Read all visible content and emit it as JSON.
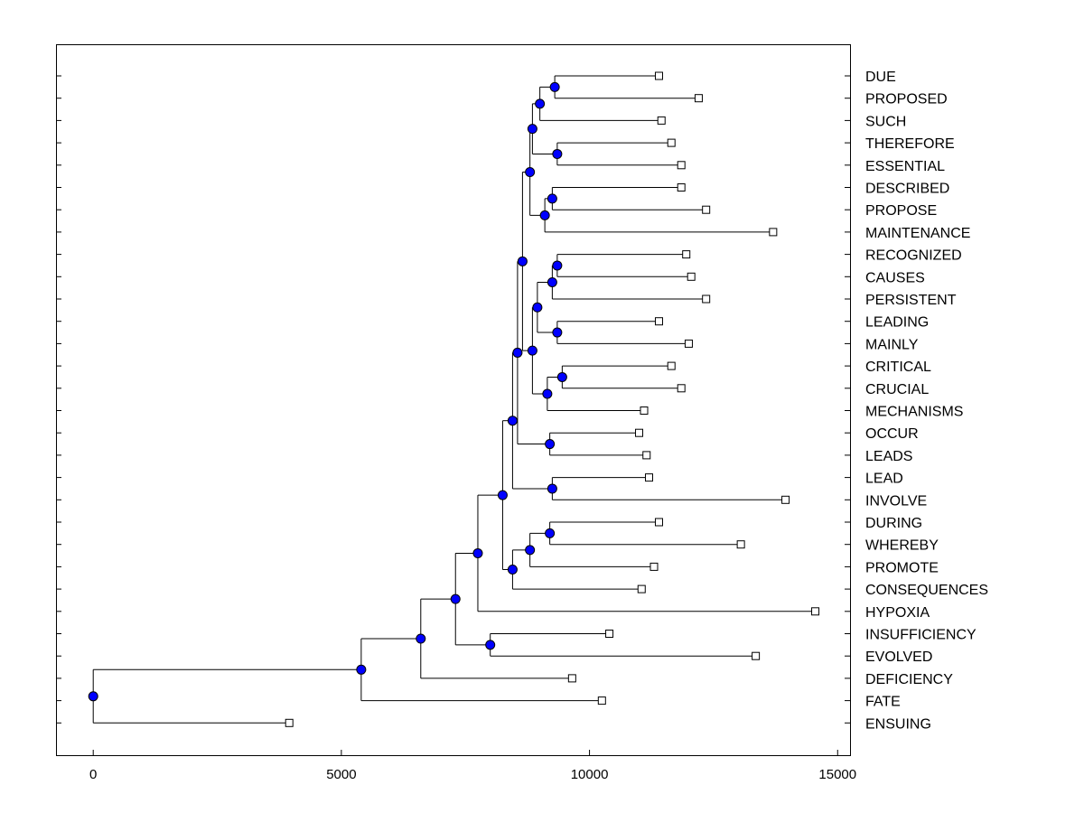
{
  "chart_data": {
    "type": "dendrogram",
    "title": "",
    "xlabel": "",
    "ylabel": "",
    "xlim": [
      -750,
      15250
    ],
    "x_ticks": [
      0,
      5000,
      10000,
      15000
    ],
    "x_tick_labels": [
      "0",
      "5000",
      "10000",
      "15000"
    ],
    "grid": false,
    "legend": "none",
    "colors": {
      "internal_node": "#0000ff",
      "internal_node_edge": "#000000",
      "leaf_marker": "#ffffff",
      "lines": "#000000"
    },
    "leaves": [
      {
        "id": "L0",
        "label": "DUE",
        "x": 11400
      },
      {
        "id": "L1",
        "label": "PROPOSED",
        "x": 12200
      },
      {
        "id": "L2",
        "label": "SUCH",
        "x": 11450
      },
      {
        "id": "L3",
        "label": "THEREFORE",
        "x": 11650
      },
      {
        "id": "L4",
        "label": "ESSENTIAL",
        "x": 11850
      },
      {
        "id": "L5",
        "label": "DESCRIBED",
        "x": 11850
      },
      {
        "id": "L6",
        "label": "PROPOSE",
        "x": 12350
      },
      {
        "id": "L7",
        "label": "MAINTENANCE",
        "x": 13700
      },
      {
        "id": "L8",
        "label": "RECOGNIZED",
        "x": 11950
      },
      {
        "id": "L9",
        "label": "CAUSES",
        "x": 12050
      },
      {
        "id": "L10",
        "label": "PERSISTENT",
        "x": 12350
      },
      {
        "id": "L11",
        "label": "LEADING",
        "x": 11400
      },
      {
        "id": "L12",
        "label": "MAINLY",
        "x": 12000
      },
      {
        "id": "L13",
        "label": "CRITICAL",
        "x": 11650
      },
      {
        "id": "L14",
        "label": "CRUCIAL",
        "x": 11850
      },
      {
        "id": "L15",
        "label": "MECHANISMS",
        "x": 11100
      },
      {
        "id": "L16",
        "label": "OCCUR",
        "x": 11000
      },
      {
        "id": "L17",
        "label": "LEADS",
        "x": 11150
      },
      {
        "id": "L18",
        "label": "LEAD",
        "x": 11200
      },
      {
        "id": "L19",
        "label": "INVOLVE",
        "x": 13950
      },
      {
        "id": "L20",
        "label": "DURING",
        "x": 11400
      },
      {
        "id": "L21",
        "label": "WHEREBY",
        "x": 13050
      },
      {
        "id": "L22",
        "label": "PROMOTE",
        "x": 11300
      },
      {
        "id": "L23",
        "label": "CONSEQUENCES",
        "x": 11050
      },
      {
        "id": "L24",
        "label": "HYPOXIA",
        "x": 14550
      },
      {
        "id": "L25",
        "label": "INSUFFICIENCY",
        "x": 10400
      },
      {
        "id": "L26",
        "label": "EVOLVED",
        "x": 13350
      },
      {
        "id": "L27",
        "label": "DEFICIENCY",
        "x": 9650
      },
      {
        "id": "L28",
        "label": "FATE",
        "x": 10250
      },
      {
        "id": "L29",
        "label": "ENSUING",
        "x": 3950
      }
    ],
    "merges": [
      {
        "id": "N1",
        "x": 9300,
        "children": [
          "L0",
          "L1"
        ]
      },
      {
        "id": "N2",
        "x": 9000,
        "children": [
          "N1",
          "L2"
        ]
      },
      {
        "id": "N3",
        "x": 9350,
        "children": [
          "L3",
          "L4"
        ]
      },
      {
        "id": "N4",
        "x": 8850,
        "children": [
          "N2",
          "N3"
        ]
      },
      {
        "id": "N5",
        "x": 9250,
        "children": [
          "L5",
          "L6"
        ]
      },
      {
        "id": "N6",
        "x": 9100,
        "children": [
          "N5",
          "L7"
        ]
      },
      {
        "id": "N7",
        "x": 8800,
        "children": [
          "N4",
          "N6"
        ]
      },
      {
        "id": "N8",
        "x": 9350,
        "children": [
          "L8",
          "L9"
        ]
      },
      {
        "id": "N9",
        "x": 9250,
        "children": [
          "N8",
          "L10"
        ]
      },
      {
        "id": "N10",
        "x": 9350,
        "children": [
          "L11",
          "L12"
        ]
      },
      {
        "id": "N11",
        "x": 8950,
        "children": [
          "N9",
          "N10"
        ]
      },
      {
        "id": "N12",
        "x": 9450,
        "children": [
          "L13",
          "L14"
        ]
      },
      {
        "id": "N13",
        "x": 9150,
        "children": [
          "N12",
          "L15"
        ]
      },
      {
        "id": "N14",
        "x": 8850,
        "children": [
          "N11",
          "N13"
        ]
      },
      {
        "id": "N15",
        "x": 8650,
        "children": [
          "N7",
          "N14"
        ]
      },
      {
        "id": "N16",
        "x": 9200,
        "children": [
          "L16",
          "L17"
        ]
      },
      {
        "id": "N17",
        "x": 8550,
        "children": [
          "N15",
          "N16"
        ]
      },
      {
        "id": "N18",
        "x": 9250,
        "children": [
          "L18",
          "L19"
        ]
      },
      {
        "id": "N19",
        "x": 8450,
        "children": [
          "N17",
          "N18"
        ]
      },
      {
        "id": "N20",
        "x": 9200,
        "children": [
          "L20",
          "L21"
        ]
      },
      {
        "id": "N21",
        "x": 8800,
        "children": [
          "N20",
          "L22"
        ]
      },
      {
        "id": "N22",
        "x": 8450,
        "children": [
          "N21",
          "L23"
        ]
      },
      {
        "id": "N23",
        "x": 8250,
        "children": [
          "N19",
          "N22"
        ]
      },
      {
        "id": "N24",
        "x": 7750,
        "children": [
          "N23",
          "L24"
        ]
      },
      {
        "id": "N25",
        "x": 8000,
        "children": [
          "L25",
          "L26"
        ]
      },
      {
        "id": "N26",
        "x": 7300,
        "children": [
          "N24",
          "N25"
        ]
      },
      {
        "id": "N27",
        "x": 6600,
        "children": [
          "N26",
          "L27"
        ]
      },
      {
        "id": "N28",
        "x": 5400,
        "children": [
          "N27",
          "L28"
        ]
      },
      {
        "id": "N29",
        "x": 0,
        "children": [
          "N28",
          "L29"
        ]
      }
    ]
  }
}
